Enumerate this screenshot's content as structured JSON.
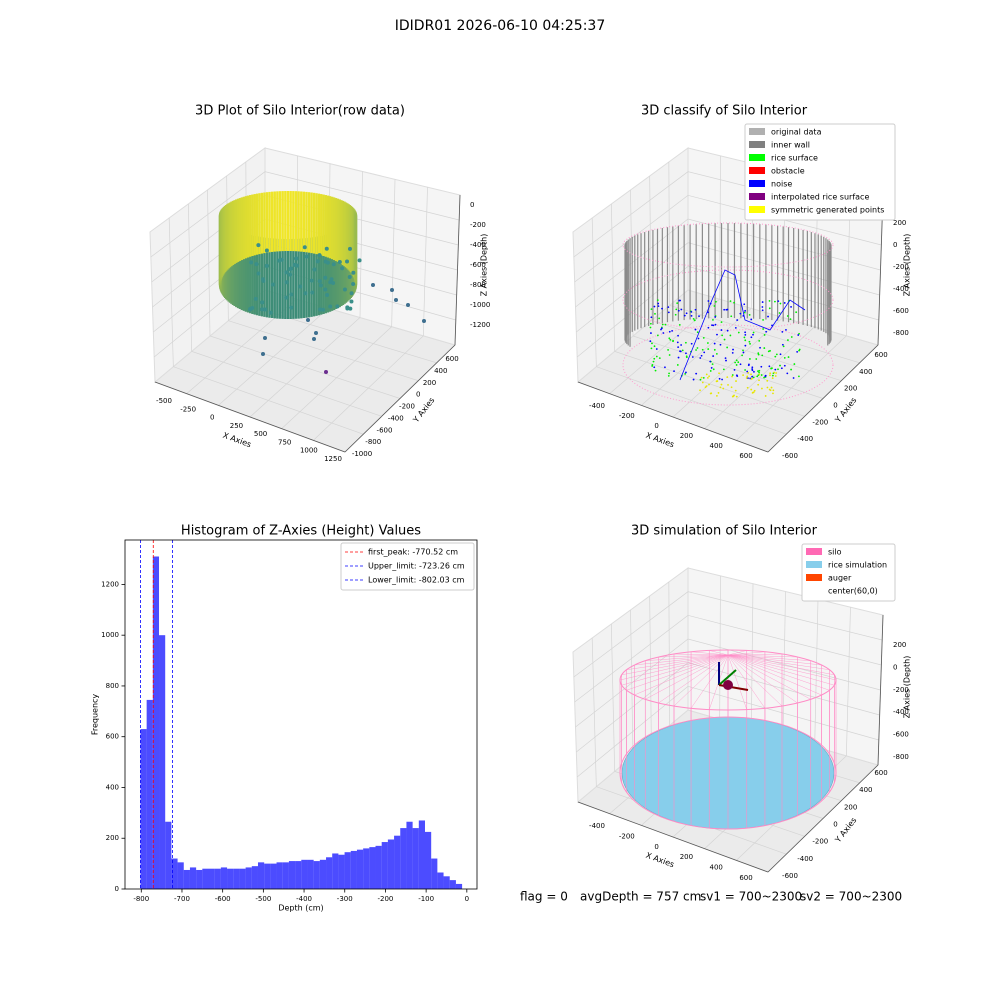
{
  "title": "IDIDR01 2026-06-10 04:25:37",
  "chart_data": [
    {
      "type": "scatter3d",
      "title": "3D Plot of Silo Interior(row data)",
      "xlabel": "X Axies",
      "ylabel": "Y Axies",
      "zlabel": "Z Axies (Depth)",
      "xticks": [
        -500,
        -250,
        0,
        250,
        500,
        750,
        1000,
        1250
      ],
      "yticks": [
        -1000,
        -800,
        -600,
        -400,
        -200,
        0,
        200,
        400,
        600
      ],
      "zticks": [
        0,
        -200,
        -400,
        -600,
        -800,
        -1000,
        -1200
      ]
    },
    {
      "type": "scatter3d",
      "title": "3D classify of Silo Interior",
      "xlabel": "X Axies",
      "ylabel": "Y Axies",
      "zlabel": "Z Axies (Depth)",
      "xticks": [
        -400,
        -200,
        0,
        200,
        400,
        600
      ],
      "yticks": [
        -600,
        -400,
        -200,
        0,
        200,
        400,
        600
      ],
      "zticks": [
        200,
        0,
        -200,
        -400,
        -600,
        -800
      ],
      "legend": [
        {
          "name": "original data",
          "color": "#b0b0b0"
        },
        {
          "name": "inner wall",
          "color": "#808080"
        },
        {
          "name": "rice surface",
          "color": "#00ff00"
        },
        {
          "name": "obstacle",
          "color": "#ff0000"
        },
        {
          "name": "noise",
          "color": "#0000ff"
        },
        {
          "name": "interpolated rice surface",
          "color": "#800080"
        },
        {
          "name": "symmetric generated points",
          "color": "#ffff00"
        }
      ]
    },
    {
      "type": "histogram",
      "title": "Histogram of Z-Axies (Height) Values",
      "xlabel": "Depth (cm)",
      "ylabel": "Frequency",
      "color": "#0000ff",
      "bins": [
        -802,
        -786.8,
        -771.6,
        -756.4,
        -741.2,
        -726,
        -710.8,
        -695.6,
        -680.4,
        -665.2,
        -650,
        -634.8,
        -619.6,
        -604.4,
        -589.2,
        -574,
        -558.8,
        -543.6,
        -528.4,
        -513.2,
        -498,
        -482.8,
        -467.6,
        -452.4,
        -437.2,
        -422,
        -406.8,
        -391.6,
        -376.4,
        -361.2,
        -346,
        -330.8,
        -315.6,
        -300.4,
        -285.2,
        -270,
        -254.8,
        -239.6,
        -224.4,
        -209.2,
        -194,
        -178.8,
        -163.6,
        -148.4,
        -133.2,
        -118,
        -102.8,
        -87.6,
        -72.4,
        -57.2,
        -42,
        -26.8,
        -11.6
      ],
      "counts": [
        630,
        745,
        1310,
        1000,
        265,
        120,
        105,
        75,
        85,
        75,
        80,
        80,
        80,
        85,
        80,
        80,
        80,
        85,
        90,
        105,
        100,
        100,
        105,
        105,
        110,
        110,
        115,
        115,
        110,
        115,
        125,
        140,
        135,
        145,
        150,
        155,
        160,
        165,
        170,
        185,
        195,
        210,
        240,
        265,
        240,
        270,
        225,
        120,
        65,
        50,
        35,
        20
      ],
      "xlim": [
        -840,
        25
      ],
      "xticks": [
        -800,
        -700,
        -600,
        -500,
        -400,
        -300,
        -200,
        -100,
        0
      ],
      "ylim": [
        0,
        1375
      ],
      "yticks": [
        0,
        200,
        400,
        600,
        800,
        1000,
        1200
      ],
      "lines": [
        {
          "name": "first_peak: -770.52 cm",
          "value": -770.52,
          "color": "#ff0000"
        },
        {
          "name": "Upper_limit: -723.26 cm",
          "value": -723.26,
          "color": "#0000ff"
        },
        {
          "name": "Lower_limit: -802.03 cm",
          "value": -802.03,
          "color": "#0000ff"
        }
      ],
      "legend_position": "upper right"
    },
    {
      "type": "scatter3d",
      "title": "3D simulation of Silo Interior",
      "xlabel": "X Axies",
      "ylabel": "Y Axies",
      "zlabel": "Z Axies (Depth)",
      "xticks": [
        -400,
        -200,
        0,
        200,
        400,
        600
      ],
      "yticks": [
        -600,
        -400,
        -200,
        0,
        200,
        400,
        600
      ],
      "zticks": [
        200,
        0,
        -200,
        -400,
        -600,
        -800
      ],
      "legend": [
        {
          "name": "silo",
          "color": "#ff69b4"
        },
        {
          "name": "rice simulation",
          "color": "#87ceeb"
        },
        {
          "name": "auger",
          "color": "#ff4500"
        },
        {
          "name": "center(60,0)",
          "color": "#ffffff"
        }
      ]
    }
  ],
  "status": [
    "flag = 0",
    "avgDepth = 757 cm",
    "sv1 = 700~2300",
    "sv2 = 700~2300"
  ]
}
